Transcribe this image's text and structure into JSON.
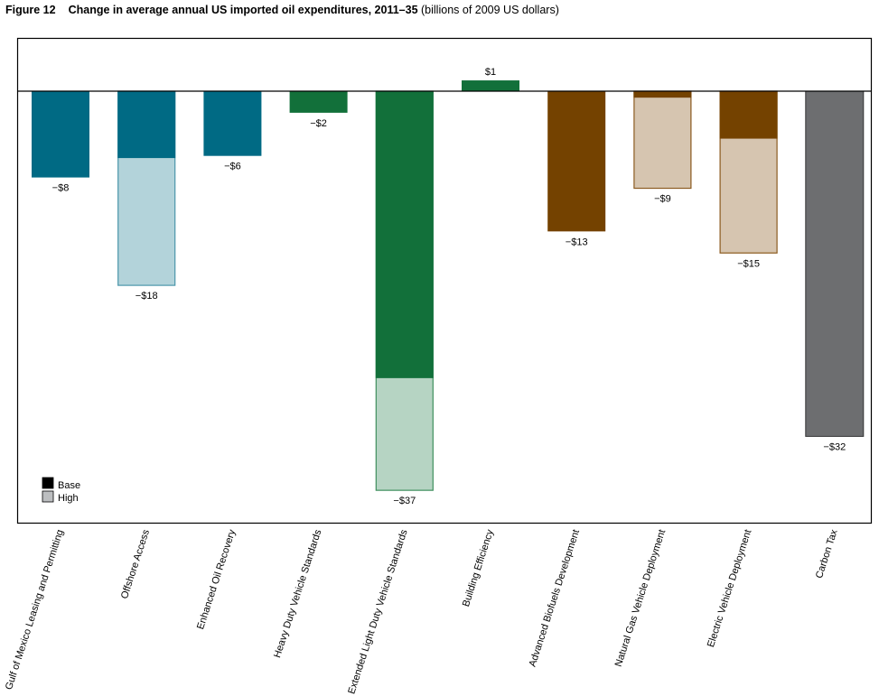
{
  "header": {
    "figure_label": "Figure 12",
    "title": "Change in average annual US imported oil expenditures, 2011–35",
    "subtitle": "(billions of 2009 US dollars)"
  },
  "chart_data": {
    "type": "bar",
    "stacked_overlay": true,
    "title": "Change in average annual US imported oil expenditures, 2011–35",
    "subtitle": "(billions of 2009 US dollars)",
    "xlabel": "",
    "ylabel": "",
    "ylim": [
      -40,
      5
    ],
    "grid": false,
    "legend": {
      "position": "bottom-left",
      "entries": [
        "Base",
        "High"
      ]
    },
    "categories": [
      "Gulf of Mexico Leasing and Permitting",
      "Offshore Access",
      "Enhanced Oil Recovery",
      "Heavy Duty Vehicle Standards",
      "Extended Light Duty Vehicle Standards",
      "Building Efficiency",
      "Advanced Biofuels Development",
      "Natural Gas Vehicle Deployment",
      "Electric Vehicle Deployment",
      "Carbon Tax"
    ],
    "series": [
      {
        "name": "Base",
        "values": [
          -8,
          -6.2,
          -6,
          -2,
          -26.6,
          1,
          -13,
          -0.6,
          -4.4,
          -32
        ]
      },
      {
        "name": "High",
        "values": [
          null,
          -18,
          null,
          null,
          -37,
          null,
          null,
          -9,
          -15,
          null
        ]
      }
    ],
    "data_labels": [
      "−$8",
      "−$18",
      "−$6",
      "−$2",
      "−$37",
      "$1",
      "−$13",
      "−$9",
      "−$15",
      "−$32"
    ],
    "colors": {
      "base": [
        "#006a84",
        "#006a84",
        "#006a84",
        "#12703a",
        "#12703a",
        "#12703a",
        "#744200",
        "#744200",
        "#744200",
        "#6d6e70"
      ],
      "high": [
        "#b3d3da",
        "#b3d3da",
        "#b3d3da",
        "#b6d4c3",
        "#b6d4c3",
        "#b6d4c3",
        "#d6c5b0",
        "#d6c5b0",
        "#d6c5b0",
        "#6d6e70"
      ],
      "high_border": [
        "#4b97aa",
        "#4b97aa",
        "#4b97aa",
        "#3f8f5e",
        "#3f8f5e",
        "#3f8f5e",
        "#8b5a1f",
        "#8b5a1f",
        "#8b5a1f",
        "#333333"
      ],
      "legend_base": "#000000",
      "legend_high": "#bcbec0"
    }
  }
}
